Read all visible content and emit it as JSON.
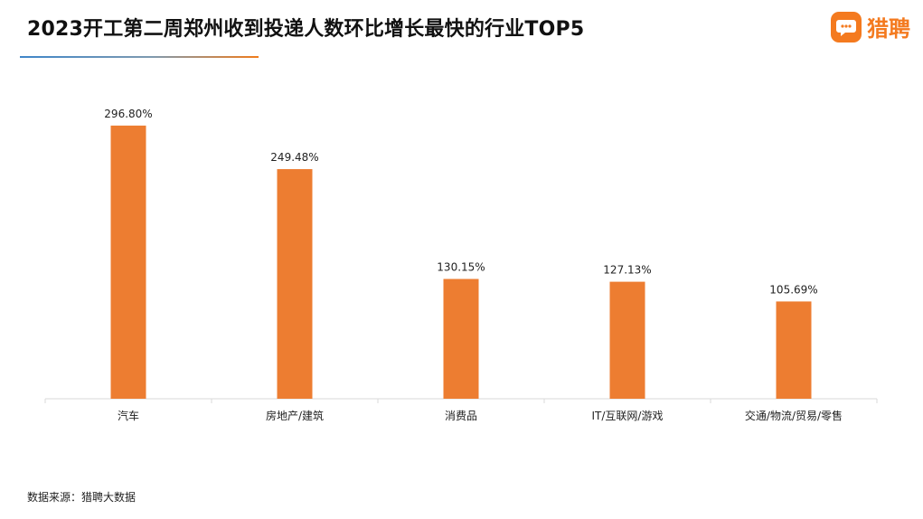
{
  "title": "2023开工第二周郑州收到投递人数环比增长最快的行业TOP5",
  "logo": {
    "text": "猎聘",
    "icon": "liepin-chat-logo-icon",
    "color": "#f47a1f"
  },
  "source": "数据来源：猎聘大数据",
  "chart_data": {
    "type": "bar",
    "categories": [
      "汽车",
      "房地产/建筑",
      "消费品",
      "IT/互联网/游戏",
      "交通/物流/贸易/零售"
    ],
    "values": [
      296.8,
      249.48,
      130.15,
      127.13,
      105.69
    ],
    "data_labels": [
      "296.80%",
      "249.48%",
      "130.15%",
      "127.13%",
      "105.69%"
    ],
    "unit": "%",
    "ylim": [
      0,
      335
    ],
    "grid": false,
    "legend": false,
    "bar_color": "#ed7d31",
    "axis_color": "#d9d9d9"
  }
}
